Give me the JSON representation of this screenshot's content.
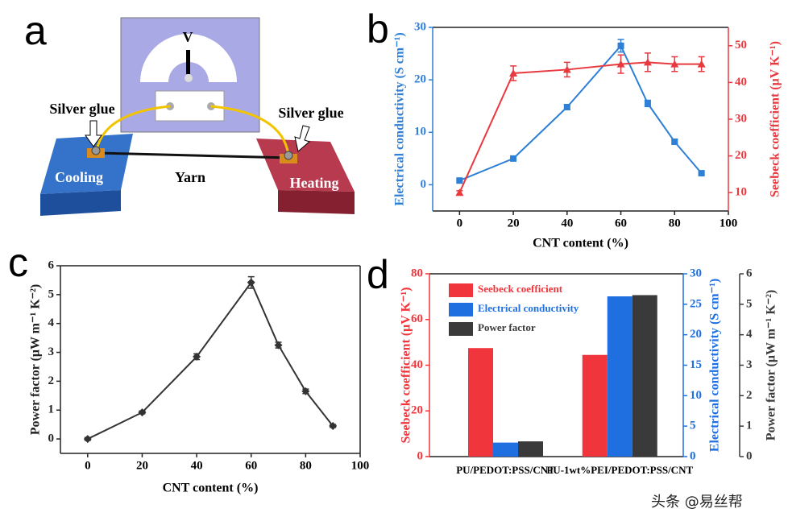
{
  "diagram": {
    "panel": "a",
    "meter_label": "V",
    "left_glue": "Silver glue",
    "right_glue": "Silver glue",
    "yarn": "Yarn",
    "cold_block": "Cooling",
    "hot_block": "Heating"
  },
  "watermark": "头条 @易丝帮",
  "chart_data": [
    {
      "panel": "b",
      "type": "line",
      "xlabel": "CNT content (%)",
      "ylabel": "Electrical conductivity (S cm⁻¹)",
      "y2label": "Seebeck coefficient (μV K⁻¹)",
      "x": [
        0,
        20,
        40,
        60,
        70,
        80,
        90
      ],
      "xlim": [
        -10,
        100
      ],
      "xticks": [
        0,
        20,
        40,
        60,
        80,
        100
      ],
      "ylim": [
        -5,
        30
      ],
      "yticks": [
        0,
        10,
        20,
        30
      ],
      "y2lim": [
        5,
        55
      ],
      "y2ticks": [
        10,
        20,
        30,
        40,
        50
      ],
      "series": [
        {
          "color": "#2e7fd6",
          "marker": "square",
          "values": [
            0.8,
            5,
            14.8,
            26.5,
            15.5,
            8.2,
            2.2
          ],
          "errors": [
            0.2,
            0.3,
            0.5,
            1.2,
            0.6,
            0.3,
            0.2
          ]
        },
        {
          "color": "#e8393f",
          "marker": "triangle",
          "axis": "y2",
          "values": [
            10,
            42.5,
            43.5,
            45,
            45.5,
            45,
            45
          ],
          "errors": [
            0.5,
            2,
            2,
            2.5,
            2.5,
            2,
            2
          ]
        }
      ]
    },
    {
      "panel": "c",
      "type": "line",
      "xlabel": "CNT content (%)",
      "ylabel": "Power factor (μW m⁻¹ K⁻²)",
      "x": [
        0,
        20,
        40,
        60,
        70,
        80,
        90
      ],
      "xlim": [
        -10,
        100
      ],
      "xticks": [
        0,
        20,
        40,
        60,
        80,
        100
      ],
      "ylim": [
        -0.5,
        6
      ],
      "yticks": [
        0,
        1,
        2,
        3,
        4,
        5,
        6
      ],
      "series": [
        {
          "color": "#333333",
          "marker": "diamond",
          "values": [
            0,
            0.92,
            2.85,
            5.42,
            3.25,
            1.65,
            0.45
          ],
          "errors": [
            0.05,
            0.05,
            0.1,
            0.2,
            0.1,
            0.08,
            0.05
          ]
        }
      ]
    },
    {
      "panel": "d",
      "type": "bar",
      "categories": [
        "PU/PEDOT:PSS/CNT",
        "PU-1wt%PEI/PEDOT:PSS/CNT"
      ],
      "ylabel": "Seebeck coefficient (μV K⁻¹)",
      "y2label": "Electrical conductivity (S cm⁻¹)",
      "y3label": "Power factor (μW m⁻¹ K⁻²)",
      "ylim": [
        0,
        80
      ],
      "yticks": [
        0,
        20,
        40,
        60,
        80
      ],
      "y2lim": [
        0,
        30
      ],
      "y2ticks": [
        0,
        5,
        10,
        15,
        20,
        25,
        30
      ],
      "y3lim": [
        0,
        6
      ],
      "y3ticks": [
        0,
        1,
        2,
        3,
        4,
        5,
        6
      ],
      "legend": "upper left",
      "series": [
        {
          "name": "Seebeck coefficient",
          "color": "#f0363c",
          "values": [
            47.5,
            44.5
          ]
        },
        {
          "name": "Electrical conductivity",
          "color": "#1f6fe0",
          "axis": "y2",
          "values": [
            2.3,
            26.3
          ]
        },
        {
          "name": "Power factor",
          "color": "#3a3a3a",
          "axis": "y3",
          "values": [
            0.5,
            5.3
          ]
        }
      ]
    }
  ]
}
